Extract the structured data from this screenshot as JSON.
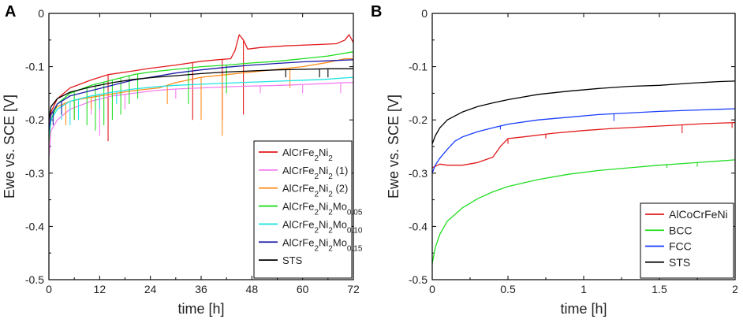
{
  "chart_data": [
    {
      "panel": "A",
      "type": "line",
      "xlabel": "time [h]",
      "ylabel": "Ewe vs. SCE [V]",
      "xlim": [
        0,
        72
      ],
      "ylim": [
        -0.5,
        0
      ],
      "xticks": [
        0,
        12,
        24,
        36,
        48,
        60,
        72
      ],
      "yticks": [
        0,
        -0.1,
        -0.2,
        -0.3,
        -0.4,
        -0.5
      ],
      "xtick_labels": [
        "0",
        "12",
        "24",
        "36",
        "48",
        "60",
        "72"
      ],
      "ytick_labels": [
        "0",
        "-0.1",
        "-0.2",
        "-0.3",
        "-0.4",
        "-0.5"
      ],
      "legend_position": "bottom-right",
      "series": [
        {
          "name": "AlCrFe2Ni2",
          "base": "AlCrFe",
          "sub1": "2",
          "mid": "Ni",
          "sub2": "2",
          "suffix": "",
          "color": "#e31a1c",
          "points": [
            [
              0,
              -0.225
            ],
            [
              0.5,
              -0.185
            ],
            [
              2,
              -0.16
            ],
            [
              5,
              -0.14
            ],
            [
              10,
              -0.125
            ],
            [
              14,
              -0.115
            ],
            [
              20,
              -0.108
            ],
            [
              24,
              -0.103
            ],
            [
              30,
              -0.097
            ],
            [
              36,
              -0.09
            ],
            [
              40,
              -0.087
            ],
            [
              43,
              -0.085
            ],
            [
              44,
              -0.07
            ],
            [
              45,
              -0.04
            ],
            [
              46,
              -0.05
            ],
            [
              47,
              -0.067
            ],
            [
              50,
              -0.064
            ],
            [
              56,
              -0.061
            ],
            [
              62,
              -0.059
            ],
            [
              68,
              -0.057
            ],
            [
              70,
              -0.05
            ],
            [
              71,
              -0.04
            ],
            [
              72,
              -0.055
            ]
          ],
          "spikes": [
            [
              14,
              -0.24
            ],
            [
              34,
              -0.2
            ],
            [
              41,
              -0.2
            ],
            [
              46,
              -0.19
            ]
          ]
        },
        {
          "name": "AlCrFe2Ni2 (1)",
          "base": "AlCrFe",
          "sub1": "2",
          "mid": "Ni",
          "sub2": "2",
          "suffix": " (1)",
          "color": "#f47cf0",
          "points": [
            [
              0,
              -0.27
            ],
            [
              0.5,
              -0.22
            ],
            [
              2,
              -0.2
            ],
            [
              5,
              -0.18
            ],
            [
              10,
              -0.165
            ],
            [
              15,
              -0.155
            ],
            [
              20,
              -0.15
            ],
            [
              25,
              -0.145
            ],
            [
              30,
              -0.142
            ],
            [
              36,
              -0.14
            ],
            [
              45,
              -0.137
            ],
            [
              55,
              -0.135
            ],
            [
              65,
              -0.132
            ],
            [
              70,
              -0.13
            ],
            [
              72,
              -0.13
            ]
          ],
          "spikes": [
            [
              10,
              -0.19
            ],
            [
              12,
              -0.23
            ],
            [
              18,
              -0.18
            ],
            [
              30,
              -0.16
            ],
            [
              50,
              -0.15
            ],
            [
              60,
              -0.15
            ],
            [
              69,
              -0.15
            ]
          ]
        },
        {
          "name": "AlCrFe2Ni2 (2)",
          "base": "AlCrFe",
          "sub1": "2",
          "mid": "Ni",
          "sub2": "2",
          "suffix": " (2)",
          "color": "#ff8c1a",
          "points": [
            [
              0,
              -0.23
            ],
            [
              0.5,
              -0.19
            ],
            [
              2,
              -0.175
            ],
            [
              5,
              -0.165
            ],
            [
              8,
              -0.16
            ],
            [
              12,
              -0.155
            ],
            [
              16,
              -0.15
            ],
            [
              20,
              -0.145
            ],
            [
              26,
              -0.14
            ],
            [
              30,
              -0.13
            ],
            [
              36,
              -0.12
            ],
            [
              42,
              -0.115
            ],
            [
              48,
              -0.11
            ],
            [
              54,
              -0.105
            ],
            [
              60,
              -0.1
            ],
            [
              66,
              -0.092
            ],
            [
              70,
              -0.085
            ],
            [
              72,
              -0.085
            ]
          ],
          "spikes": [
            [
              4,
              -0.21
            ],
            [
              6,
              -0.2
            ],
            [
              10,
              -0.18
            ],
            [
              28,
              -0.17
            ],
            [
              36,
              -0.2
            ],
            [
              41,
              -0.23
            ],
            [
              57,
              -0.14
            ]
          ]
        },
        {
          "name": "AlCrFe2Ni2Mo0.05",
          "base": "AlCrFe",
          "sub1": "2",
          "mid": "Ni",
          "sub2": "2",
          "suffix": "Mo",
          "sub3": "0.05",
          "color": "#22dd22",
          "points": [
            [
              0,
              -0.24
            ],
            [
              0.5,
              -0.2
            ],
            [
              2,
              -0.17
            ],
            [
              5,
              -0.15
            ],
            [
              10,
              -0.135
            ],
            [
              15,
              -0.125
            ],
            [
              20,
              -0.115
            ],
            [
              24,
              -0.11
            ],
            [
              30,
              -0.105
            ],
            [
              36,
              -0.1
            ],
            [
              42,
              -0.097
            ],
            [
              48,
              -0.093
            ],
            [
              54,
              -0.09
            ],
            [
              60,
              -0.085
            ],
            [
              66,
              -0.08
            ],
            [
              72,
              -0.072
            ]
          ],
          "spikes": [
            [
              6,
              -0.2
            ],
            [
              9,
              -0.21
            ],
            [
              11,
              -0.22
            ],
            [
              13,
              -0.21
            ],
            [
              15,
              -0.2
            ],
            [
              17,
              -0.19
            ],
            [
              19,
              -0.17
            ],
            [
              21,
              -0.16
            ],
            [
              33,
              -0.17
            ],
            [
              42,
              -0.15
            ]
          ]
        },
        {
          "name": "AlCrFe2Ni2Mo0.10",
          "base": "AlCrFe",
          "sub1": "2",
          "mid": "Ni",
          "sub2": "2",
          "suffix": "Mo",
          "sub3": "0.10",
          "color": "#22e3e3",
          "points": [
            [
              0,
              -0.23
            ],
            [
              0.5,
              -0.2
            ],
            [
              2,
              -0.18
            ],
            [
              5,
              -0.165
            ],
            [
              10,
              -0.155
            ],
            [
              15,
              -0.148
            ],
            [
              20,
              -0.142
            ],
            [
              25,
              -0.138
            ],
            [
              30,
              -0.135
            ],
            [
              36,
              -0.133
            ],
            [
              45,
              -0.13
            ],
            [
              55,
              -0.127
            ],
            [
              65,
              -0.124
            ],
            [
              72,
              -0.12
            ]
          ],
          "spikes": [
            [
              3,
              -0.2
            ],
            [
              5,
              -0.21
            ],
            [
              7,
              -0.2
            ],
            [
              12,
              -0.18
            ],
            [
              16,
              -0.17
            ]
          ]
        },
        {
          "name": "AlCrFe2Ni2Mo0.15",
          "base": "AlCrFe",
          "sub1": "2",
          "mid": "Ni",
          "sub2": "2",
          "suffix": "Mo",
          "sub3": "0.15",
          "color": "#1a1aa8",
          "points": [
            [
              0,
              -0.22
            ],
            [
              0.5,
              -0.19
            ],
            [
              2,
              -0.17
            ],
            [
              5,
              -0.155
            ],
            [
              10,
              -0.145
            ],
            [
              15,
              -0.135
            ],
            [
              20,
              -0.125
            ],
            [
              24,
              -0.12
            ],
            [
              30,
              -0.112
            ],
            [
              36,
              -0.106
            ],
            [
              42,
              -0.101
            ],
            [
              48,
              -0.097
            ],
            [
              54,
              -0.094
            ],
            [
              60,
              -0.091
            ],
            [
              66,
              -0.089
            ],
            [
              72,
              -0.087
            ]
          ],
          "spikes": [
            [
              1,
              -0.21
            ],
            [
              3,
              -0.19
            ]
          ]
        },
        {
          "name": "STS",
          "base": "STS",
          "color": "#000000",
          "points": [
            [
              0,
              -0.2
            ],
            [
              0.5,
              -0.175
            ],
            [
              2,
              -0.16
            ],
            [
              5,
              -0.148
            ],
            [
              10,
              -0.138
            ],
            [
              15,
              -0.13
            ],
            [
              20,
              -0.124
            ],
            [
              25,
              -0.12
            ],
            [
              30,
              -0.117
            ],
            [
              36,
              -0.113
            ],
            [
              42,
              -0.11
            ],
            [
              48,
              -0.108
            ],
            [
              54,
              -0.106
            ],
            [
              60,
              -0.105
            ],
            [
              66,
              -0.104
            ],
            [
              72,
              -0.104
            ]
          ],
          "spikes": [
            [
              56,
              -0.12
            ],
            [
              64,
              -0.12
            ],
            [
              66,
              -0.12
            ]
          ]
        }
      ]
    },
    {
      "panel": "B",
      "type": "line",
      "xlabel": "time [h]",
      "ylabel": "Ewe vs. SCE [V]",
      "xlim": [
        0,
        2
      ],
      "ylim": [
        -0.5,
        0
      ],
      "xticks": [
        0,
        0.5,
        1,
        1.5,
        2
      ],
      "yticks": [
        0,
        -0.1,
        -0.2,
        -0.3,
        -0.4,
        -0.5
      ],
      "xtick_labels": [
        "0",
        "0.5",
        "1",
        "1.5",
        "2"
      ],
      "ytick_labels": [
        "0",
        "-0.1",
        "-0.2",
        "-0.3",
        "-0.4",
        "-0.5"
      ],
      "legend_position": "bottom-right",
      "series": [
        {
          "name": "AlCoCrFeNi",
          "base": "AlCoCrFeNi",
          "color": "#e31a1c",
          "points": [
            [
              0,
              -0.29
            ],
            [
              0.05,
              -0.283
            ],
            [
              0.1,
              -0.285
            ],
            [
              0.2,
              -0.285
            ],
            [
              0.3,
              -0.28
            ],
            [
              0.4,
              -0.27
            ],
            [
              0.45,
              -0.25
            ],
            [
              0.5,
              -0.235
            ],
            [
              0.6,
              -0.232
            ],
            [
              0.8,
              -0.225
            ],
            [
              1.0,
              -0.22
            ],
            [
              1.2,
              -0.216
            ],
            [
              1.4,
              -0.213
            ],
            [
              1.6,
              -0.21
            ],
            [
              1.8,
              -0.207
            ],
            [
              2.0,
              -0.205
            ]
          ],
          "spikes": [
            [
              0.5,
              -0.245
            ],
            [
              0.75,
              -0.235
            ],
            [
              1.65,
              -0.225
            ],
            [
              1.98,
              -0.215
            ]
          ]
        },
        {
          "name": "BCC",
          "base": "BCC",
          "color": "#22dd22",
          "points": [
            [
              0,
              -0.47
            ],
            [
              0.02,
              -0.44
            ],
            [
              0.05,
              -0.415
            ],
            [
              0.1,
              -0.39
            ],
            [
              0.2,
              -0.365
            ],
            [
              0.3,
              -0.348
            ],
            [
              0.4,
              -0.335
            ],
            [
              0.5,
              -0.325
            ],
            [
              0.7,
              -0.312
            ],
            [
              0.9,
              -0.302
            ],
            [
              1.1,
              -0.295
            ],
            [
              1.3,
              -0.29
            ],
            [
              1.5,
              -0.285
            ],
            [
              1.7,
              -0.281
            ],
            [
              1.9,
              -0.277
            ],
            [
              2.0,
              -0.275
            ]
          ],
          "spikes": [
            [
              1.55,
              -0.29
            ],
            [
              1.75,
              -0.288
            ]
          ]
        },
        {
          "name": "FCC",
          "base": "FCC",
          "color": "#1a3dff",
          "points": [
            [
              0,
              -0.3
            ],
            [
              0.02,
              -0.285
            ],
            [
              0.05,
              -0.272
            ],
            [
              0.1,
              -0.255
            ],
            [
              0.15,
              -0.24
            ],
            [
              0.2,
              -0.232
            ],
            [
              0.3,
              -0.222
            ],
            [
              0.4,
              -0.215
            ],
            [
              0.5,
              -0.208
            ],
            [
              0.7,
              -0.2
            ],
            [
              0.9,
              -0.195
            ],
            [
              1.1,
              -0.19
            ],
            [
              1.3,
              -0.187
            ],
            [
              1.5,
              -0.184
            ],
            [
              1.7,
              -0.182
            ],
            [
              1.9,
              -0.18
            ],
            [
              2.0,
              -0.179
            ]
          ],
          "spikes": [
            [
              0.45,
              -0.218
            ],
            [
              1.2,
              -0.202
            ]
          ]
        },
        {
          "name": "STS",
          "base": "STS",
          "color": "#000000",
          "points": [
            [
              0,
              -0.245
            ],
            [
              0.02,
              -0.23
            ],
            [
              0.05,
              -0.215
            ],
            [
              0.1,
              -0.2
            ],
            [
              0.2,
              -0.185
            ],
            [
              0.3,
              -0.175
            ],
            [
              0.4,
              -0.168
            ],
            [
              0.5,
              -0.162
            ],
            [
              0.7,
              -0.152
            ],
            [
              0.9,
              -0.146
            ],
            [
              1.1,
              -0.141
            ],
            [
              1.3,
              -0.137
            ],
            [
              1.5,
              -0.135
            ],
            [
              1.7,
              -0.131
            ],
            [
              1.9,
              -0.128
            ],
            [
              2.0,
              -0.127
            ]
          ],
          "spikes": []
        }
      ]
    }
  ]
}
